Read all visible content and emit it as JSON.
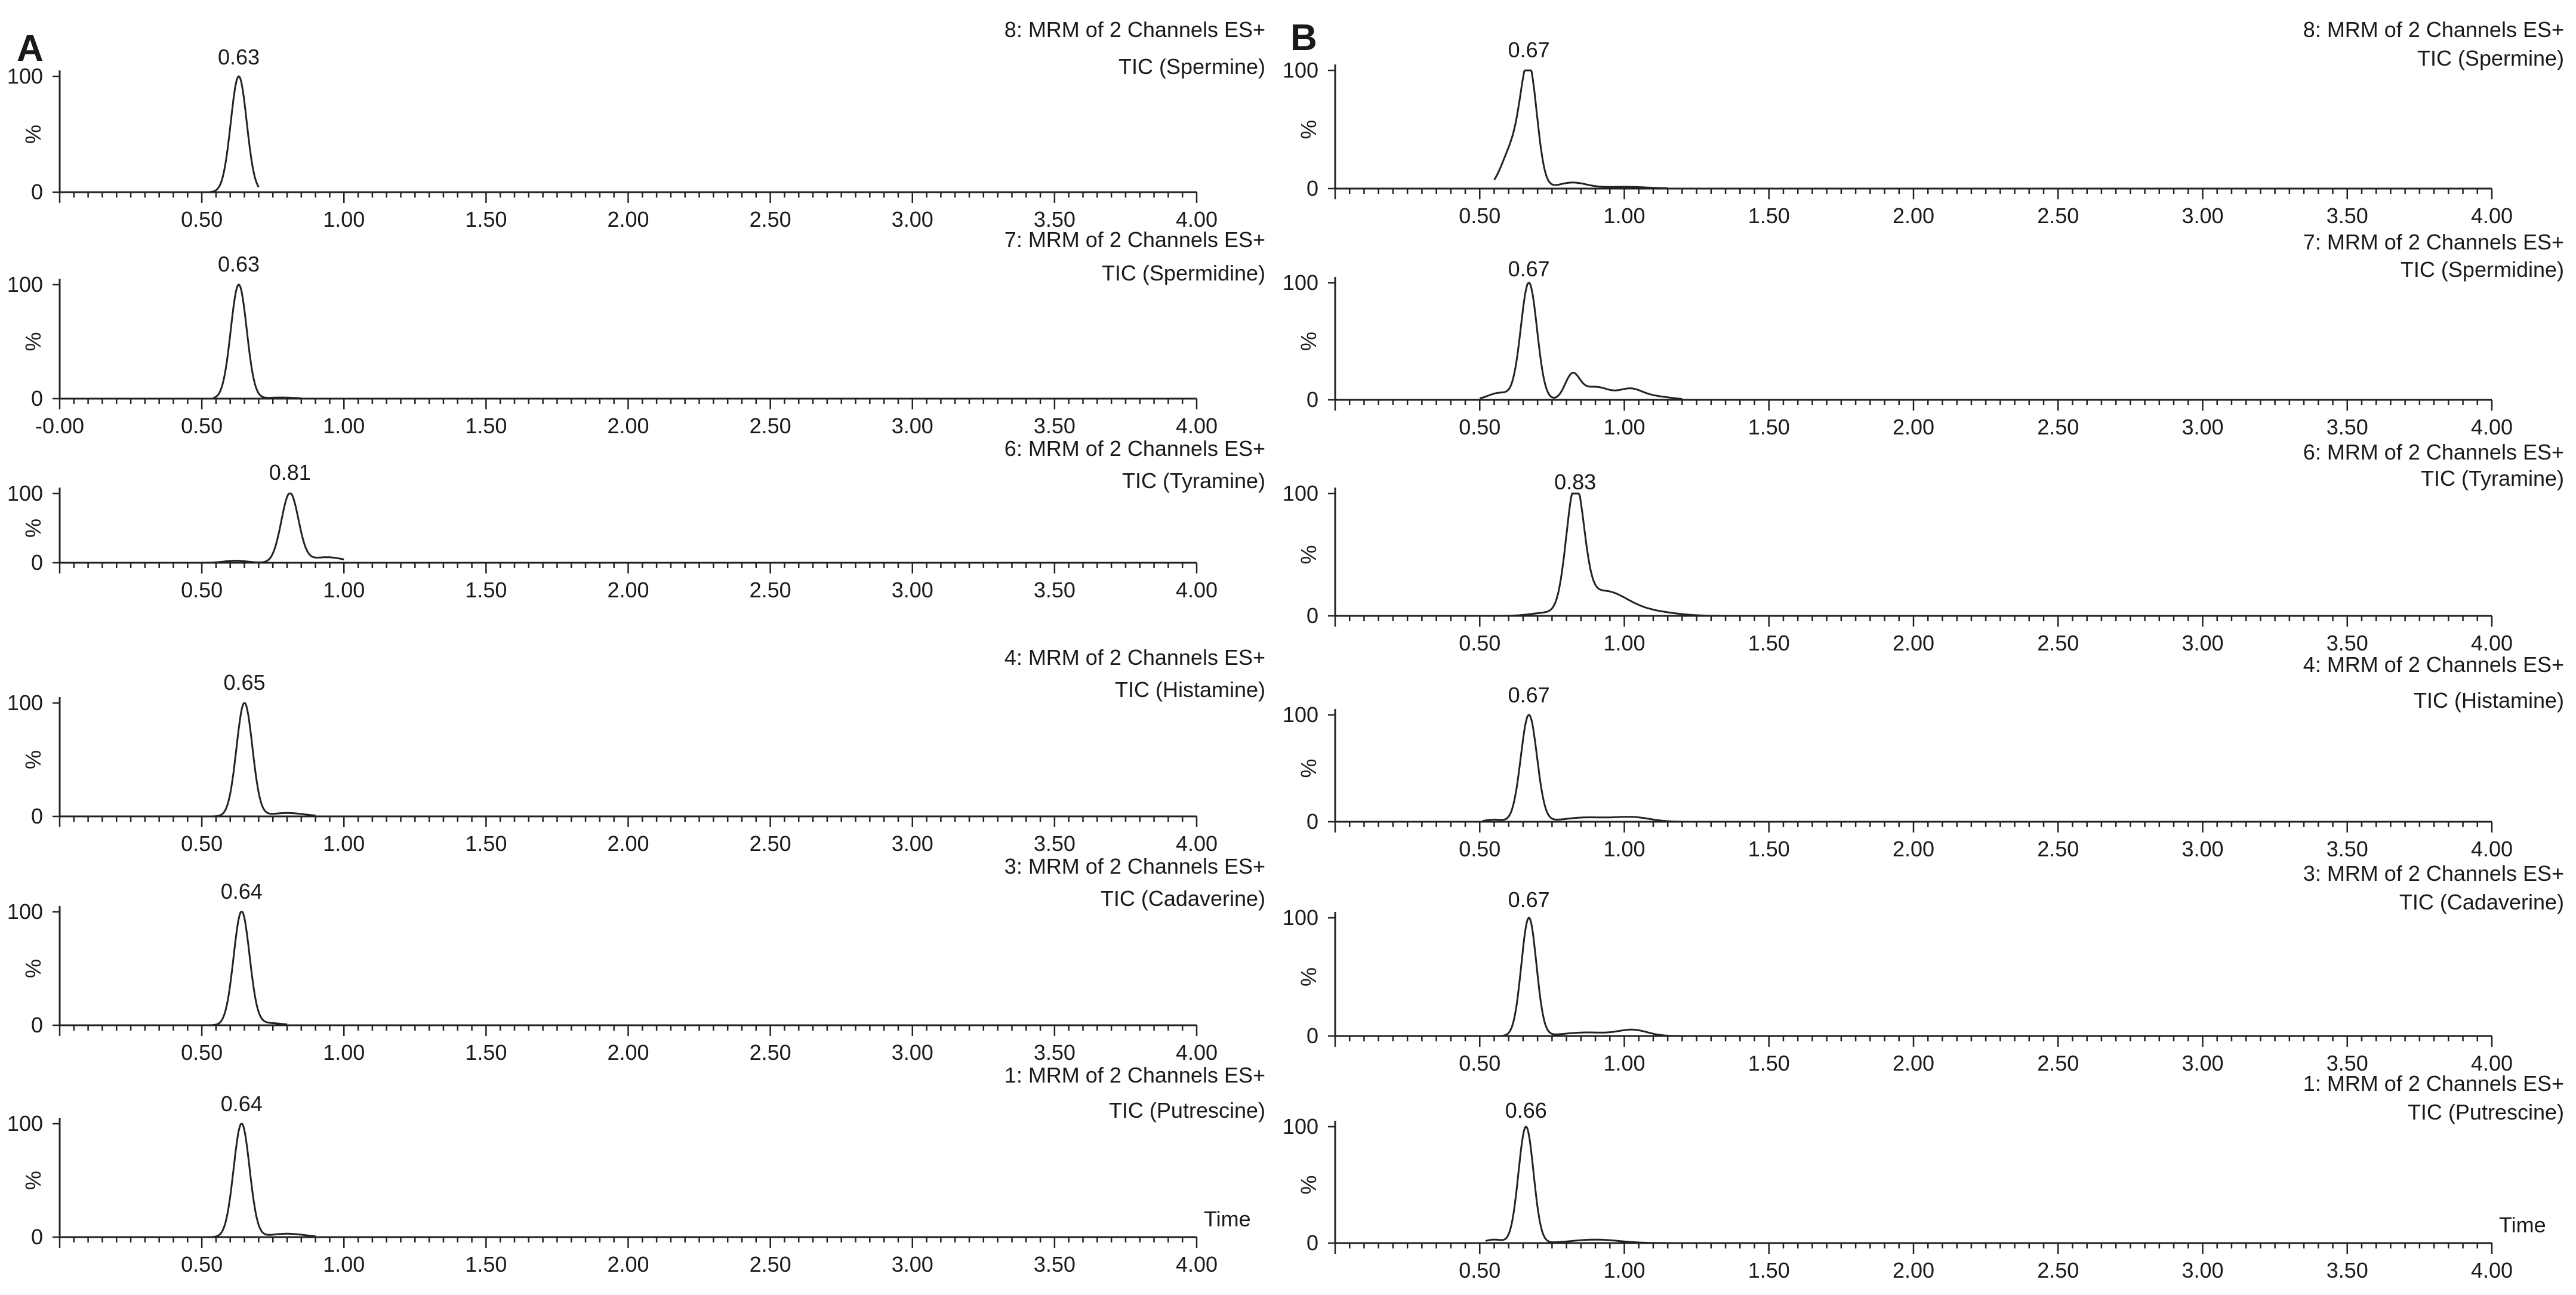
{
  "figure": {
    "panels": [
      {
        "id": "A",
        "label": "A"
      },
      {
        "id": "B",
        "label": "B"
      }
    ]
  },
  "chart_data": [
    {
      "type": "line",
      "panel": "A",
      "title_line1": "8: MRM of 2 Channels ES+",
      "title_line2": "TIC (Spermine)",
      "ylabel": "%",
      "xlabel": "",
      "yticks": [
        "100",
        "0"
      ],
      "ylim": [
        0,
        100
      ],
      "xlim": [
        0,
        4
      ],
      "xticks": [
        "0.50",
        "1.00",
        "1.50",
        "2.00",
        "2.50",
        "3.00",
        "3.50",
        "4.00"
      ],
      "peak": {
        "rt": 0.63,
        "label": "0.63",
        "width": 0.028
      },
      "trace": {
        "x_start": 0.53,
        "x_end": 0.7
      },
      "bumps": []
    },
    {
      "type": "line",
      "panel": "A",
      "title_line1": "7: MRM of 2 Channels ES+",
      "title_line2": "TIC (Spermidine)",
      "ylabel": "%",
      "xlabel": "",
      "yticks": [
        "100",
        "0"
      ],
      "ylim": [
        0,
        100
      ],
      "xlim": [
        0,
        4
      ],
      "xticks": [
        "-0.00",
        "0.50",
        "1.00",
        "1.50",
        "2.00",
        "2.50",
        "3.00",
        "3.50",
        "4.00"
      ],
      "peak": {
        "rt": 0.63,
        "label": "0.63",
        "width": 0.028
      },
      "trace": {
        "x_start": 0.54,
        "x_end": 0.85
      },
      "bumps": [
        {
          "x": 0.78,
          "h": 1,
          "w": 0.05
        }
      ]
    },
    {
      "type": "line",
      "panel": "A",
      "title_line1": "6: MRM of 2 Channels ES+",
      "title_line2": "TIC (Tyramine)",
      "ylabel": "%",
      "xlabel": "",
      "yticks": [
        "100",
        "0"
      ],
      "ylim": [
        0,
        100
      ],
      "xlim": [
        0,
        4
      ],
      "xticks": [
        "0.50",
        "1.00",
        "1.50",
        "2.00",
        "2.50",
        "3.00",
        "3.50",
        "4.00"
      ],
      "peak": {
        "rt": 0.81,
        "label": "0.81",
        "width": 0.03
      },
      "trace": {
        "x_start": 0.5,
        "x_end": 1.0
      },
      "bumps": [
        {
          "x": 0.62,
          "h": 3,
          "w": 0.04
        },
        {
          "x": 0.94,
          "h": 8,
          "w": 0.06
        }
      ]
    },
    {
      "type": "line",
      "panel": "A",
      "title_line1": "4: MRM of 2 Channels ES+",
      "title_line2": "TIC (Histamine)",
      "ylabel": "%",
      "xlabel": "",
      "yticks": [
        "100",
        "0"
      ],
      "ylim": [
        0,
        100
      ],
      "xlim": [
        0,
        4
      ],
      "xticks": [
        "0.50",
        "1.00",
        "1.50",
        "2.00",
        "2.50",
        "3.00",
        "3.50",
        "4.00"
      ],
      "peak": {
        "rt": 0.65,
        "label": "0.65",
        "width": 0.028
      },
      "trace": {
        "x_start": 0.51,
        "x_end": 0.9
      },
      "bumps": [
        {
          "x": 0.8,
          "h": 3,
          "w": 0.06
        }
      ]
    },
    {
      "type": "line",
      "panel": "A",
      "title_line1": "3: MRM of 2 Channels ES+",
      "title_line2": "TIC (Cadaverine)",
      "ylabel": "%",
      "xlabel": "",
      "yticks": [
        "100",
        "0"
      ],
      "ylim": [
        0,
        100
      ],
      "xlim": [
        0,
        4
      ],
      "xticks": [
        "0.50",
        "1.00",
        "1.50",
        "2.00",
        "2.50",
        "3.00",
        "3.50",
        "4.00"
      ],
      "peak": {
        "rt": 0.64,
        "label": "0.64",
        "width": 0.028
      },
      "trace": {
        "x_start": 0.51,
        "x_end": 0.8
      },
      "bumps": [
        {
          "x": 0.73,
          "h": 2,
          "w": 0.05
        }
      ]
    },
    {
      "type": "line",
      "panel": "A",
      "title_line1": "1: MRM of 2 Channels ES+",
      "title_line2": "TIC (Putrescine)",
      "ylabel": "%",
      "xlabel": "Time",
      "yticks": [
        "100",
        "0"
      ],
      "ylim": [
        0,
        100
      ],
      "xlim": [
        0,
        4
      ],
      "xticks": [
        "0.50",
        "1.00",
        "1.50",
        "2.00",
        "2.50",
        "3.00",
        "3.50",
        "4.00"
      ],
      "peak": {
        "rt": 0.64,
        "label": "0.64",
        "width": 0.028
      },
      "trace": {
        "x_start": 0.51,
        "x_end": 0.9
      },
      "bumps": [
        {
          "x": 0.8,
          "h": 3,
          "w": 0.06
        }
      ]
    },
    {
      "type": "line",
      "panel": "B",
      "title_line1": "8: MRM of 2 Channels ES+",
      "title_line2": "TIC (Spermine)",
      "ylabel": "%",
      "xlabel": "",
      "yticks": [
        "100",
        "0"
      ],
      "ylim": [
        0,
        100
      ],
      "xlim": [
        0,
        4
      ],
      "xticks": [
        "0.50",
        "1.00",
        "1.50",
        "2.00",
        "2.50",
        "3.00",
        "3.50",
        "4.00"
      ],
      "peak": {
        "rt": 0.67,
        "label": "0.67",
        "width": 0.028
      },
      "trace": {
        "x_start": 0.55,
        "x_end": 1.15
      },
      "bumps": [
        {
          "x": 0.61,
          "h": 32,
          "w": 0.035
        },
        {
          "x": 0.82,
          "h": 5,
          "w": 0.05
        },
        {
          "x": 1.0,
          "h": 1.5,
          "w": 0.08
        }
      ]
    },
    {
      "type": "line",
      "panel": "B",
      "title_line1": "7: MRM of 2 Channels ES+",
      "title_line2": "TIC (Spermidine)",
      "ylabel": "%",
      "xlabel": "",
      "yticks": [
        "100",
        "0"
      ],
      "ylim": [
        0,
        100
      ],
      "xlim": [
        0,
        4
      ],
      "xticks": [
        "0.50",
        "1.00",
        "1.50",
        "2.00",
        "2.50",
        "3.00",
        "3.50",
        "4.00"
      ],
      "peak": {
        "rt": 0.67,
        "label": "0.67",
        "width": 0.028
      },
      "trace": {
        "x_start": 0.5,
        "x_end": 1.2
      },
      "bumps": [
        {
          "x": 0.57,
          "h": 6,
          "w": 0.04
        },
        {
          "x": 0.82,
          "h": 20,
          "w": 0.025
        },
        {
          "x": 0.9,
          "h": 11,
          "w": 0.05
        },
        {
          "x": 1.02,
          "h": 8,
          "w": 0.04
        },
        {
          "x": 1.1,
          "h": 3,
          "w": 0.06
        }
      ]
    },
    {
      "type": "line",
      "panel": "B",
      "title_line1": "6: MRM of 2 Channels ES+",
      "title_line2": "TIC (Tyramine)",
      "ylabel": "%",
      "xlabel": "",
      "yticks": [
        "100",
        "0"
      ],
      "ylim": [
        0,
        100
      ],
      "xlim": [
        0,
        4
      ],
      "xticks": [
        "0.50",
        "1.00",
        "1.50",
        "2.00",
        "2.50",
        "3.00",
        "3.50",
        "4.00"
      ],
      "peak": {
        "rt": 0.83,
        "label": "0.83",
        "width": 0.03
      },
      "trace": {
        "x_start": 0.5,
        "x_end": 1.5
      },
      "bumps": [
        {
          "x": 0.72,
          "h": 2,
          "w": 0.05
        },
        {
          "x": 0.93,
          "h": 20,
          "w": 0.08
        },
        {
          "x": 1.1,
          "h": 3,
          "w": 0.08
        }
      ]
    },
    {
      "type": "line",
      "panel": "B",
      "title_line1": "4: MRM of 2 Channels ES+",
      "title_line2": "TIC (Histamine)",
      "ylabel": "%",
      "xlabel": "",
      "yticks": [
        "100",
        "0"
      ],
      "ylim": [
        0,
        100
      ],
      "xlim": [
        0,
        4
      ],
      "xticks": [
        "0.50",
        "1.00",
        "1.50",
        "2.00",
        "2.50",
        "3.00",
        "3.50",
        "4.00"
      ],
      "peak": {
        "rt": 0.67,
        "label": "0.67",
        "width": 0.028
      },
      "trace": {
        "x_start": 0.51,
        "x_end": 1.2
      },
      "bumps": [
        {
          "x": 0.55,
          "h": 2,
          "w": 0.03
        },
        {
          "x": 0.87,
          "h": 4,
          "w": 0.08
        },
        {
          "x": 1.03,
          "h": 4,
          "w": 0.06
        }
      ]
    },
    {
      "type": "line",
      "panel": "B",
      "title_line1": "3: MRM of 2 Channels ES+",
      "title_line2": "TIC (Cadaverine)",
      "ylabel": "%",
      "xlabel": "",
      "yticks": [
        "100",
        "0"
      ],
      "ylim": [
        0,
        100
      ],
      "xlim": [
        0,
        4
      ],
      "xticks": [
        "0.50",
        "1.00",
        "1.50",
        "2.00",
        "2.50",
        "3.00",
        "3.50",
        "4.00"
      ],
      "peak": {
        "rt": 0.67,
        "label": "0.67",
        "width": 0.026
      },
      "trace": {
        "x_start": 0.51,
        "x_end": 1.2
      },
      "bumps": [
        {
          "x": 0.87,
          "h": 3,
          "w": 0.08
        },
        {
          "x": 1.03,
          "h": 5,
          "w": 0.05
        }
      ]
    },
    {
      "type": "line",
      "panel": "B",
      "title_line1": "1: MRM of 2 Channels ES+",
      "title_line2": "TIC (Putrescine)",
      "ylabel": "%",
      "xlabel": "Time",
      "yticks": [
        "100",
        "0"
      ],
      "ylim": [
        0,
        100
      ],
      "xlim": [
        0,
        4
      ],
      "xticks": [
        "0.50",
        "1.00",
        "1.50",
        "2.00",
        "2.50",
        "3.00",
        "3.50",
        "4.00"
      ],
      "peak": {
        "rt": 0.66,
        "label": "0.66",
        "width": 0.026
      },
      "trace": {
        "x_start": 0.52,
        "x_end": 1.15
      },
      "bumps": [
        {
          "x": 0.55,
          "h": 3,
          "w": 0.03
        },
        {
          "x": 0.9,
          "h": 3,
          "w": 0.08
        }
      ]
    }
  ]
}
